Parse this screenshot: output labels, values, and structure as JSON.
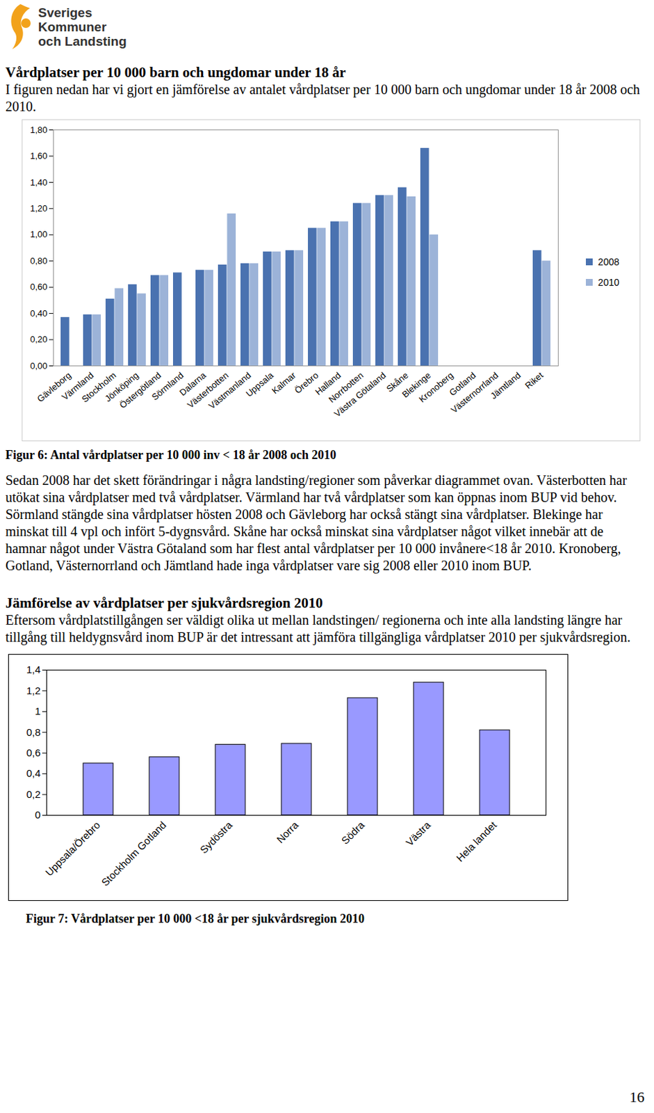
{
  "logo": [
    "Sveriges",
    "Kommuner",
    "och Landsting"
  ],
  "heading_1": "Vårdplatser per 10 000 barn och ungdomar under 18 år",
  "intro_1": "I figuren nedan har vi gjort en jämförelse av antalet vårdplatser per 10 000 barn och ungdomar under 18 år 2008 och 2010.",
  "caption_1": "Figur 6: Antal vårdplatser per 10 000 inv < 18 år 2008 och 2010",
  "paragraph_2": "Sedan 2008 har det skett förändringar i några landsting/regioner som påverkar diagrammet ovan. Västerbotten har utökat sina vårdplatser med två vårdplatser. Värmland har två vårdplatser som kan öppnas inom BUP vid behov. Sörmland stängde sina vårdplatser hösten 2008 och Gävleborg har också stängt sina vårdplatser. Blekinge har minskat till 4 vpl och infört 5-dygnsvård. Skåne har också minskat sina vårdplatser något vilket innebär att de hamnar något under Västra Götaland som har flest antal vårdplatser per 10 000 invånere<18 år 2010. Kronoberg, Gotland, Västernorrland och Jämtland hade inga vårdplatser vare sig 2008 eller 2010 inom BUP.",
  "heading_2": "Jämförelse av vårdplatser per sjukvårdsregion 2010",
  "intro_2": "Eftersom vårdplatstillgången ser väldigt olika ut mellan landstingen/ regionerna och inte alla landsting längre har tillgång till heldygnsvård inom BUP är det intressant att jämföra tillgängliga vårdplatser 2010 per sjukvårdsregion.",
  "caption_2": "Figur 7: Vårdplatser per 10 000 <18 år per sjukvårdsregion 2010",
  "page_number": "16",
  "chart_data": [
    {
      "type": "bar",
      "categories": [
        "Gävleborg",
        "Värmland",
        "Stockholm",
        "Jönköping",
        "Östergötland",
        "Sörmland",
        "Dalarna",
        "Västerbotten",
        "Västmanland",
        "Uppsala",
        "Kalmar",
        "Örebro",
        "Halland",
        "Norrbotten",
        "Västra Götaland",
        "Skåne",
        "Blekinge",
        "Kronoberg",
        "Gotland",
        "Västernorrland",
        "Jämtland",
        "Riket"
      ],
      "series": [
        {
          "name": "2008",
          "color": "#4a72b0",
          "values": [
            0.37,
            0.39,
            0.51,
            0.62,
            0.69,
            0.71,
            0.73,
            0.77,
            0.78,
            0.87,
            0.88,
            1.05,
            1.1,
            1.24,
            1.3,
            1.36,
            1.66,
            0,
            0,
            0,
            0,
            0.88
          ]
        },
        {
          "name": "2010",
          "color": "#9cb3d8",
          "values": [
            0,
            0.39,
            0.59,
            0.55,
            0.69,
            0,
            0.73,
            1.16,
            0.78,
            0.87,
            0.88,
            1.05,
            1.1,
            1.24,
            1.3,
            1.29,
            1.0,
            0,
            0,
            0,
            0,
            0.8
          ]
        }
      ],
      "ylim": [
        0,
        1.8
      ],
      "yticks": [
        {
          "value": 0,
          "label": "0,00"
        },
        {
          "value": 0.2,
          "label": "0,20"
        },
        {
          "value": 0.4,
          "label": "0,40"
        },
        {
          "value": 0.6,
          "label": "0,60"
        },
        {
          "value": 0.8,
          "label": "0,80"
        },
        {
          "value": 1.0,
          "label": "1,00"
        },
        {
          "value": 1.2,
          "label": "1,20"
        },
        {
          "value": 1.4,
          "label": "1,40"
        },
        {
          "value": 1.6,
          "label": "1,60"
        },
        {
          "value": 1.8,
          "label": "1,80"
        }
      ],
      "grid": false,
      "legend": "right"
    },
    {
      "type": "bar",
      "categories": [
        "Uppsala/Örebro",
        "Stockholm Gotland",
        "Sydöstra",
        "Norra",
        "Södra",
        "Västra",
        "Hela landet"
      ],
      "values": [
        0.5,
        0.56,
        0.68,
        0.69,
        1.13,
        1.28,
        0.82
      ],
      "color": "#9999ff",
      "ylim": [
        0,
        1.4
      ],
      "yticks": [
        0,
        {
          "value": 0.2,
          "label": "0,2"
        },
        {
          "value": 0.4,
          "label": "0,4"
        },
        {
          "value": 0.6,
          "label": "0,6"
        },
        {
          "value": 0.8,
          "label": "0,8"
        },
        1,
        {
          "value": 1.2,
          "label": "1,2"
        },
        {
          "value": 1.4,
          "label": "1,4"
        }
      ],
      "grid": false
    }
  ]
}
